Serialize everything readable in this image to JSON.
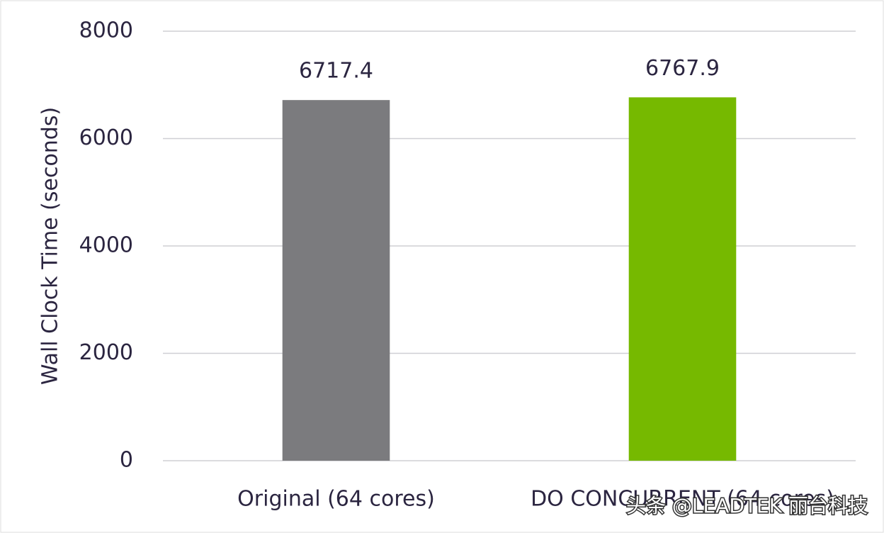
{
  "chart_data": {
    "type": "bar",
    "y_label": "Wall Clock Time (seconds)",
    "categories": [
      "Original (64 cores)",
      "DO CONCURRENT (64 cores)"
    ],
    "values": [
      6717.4,
      6767.9
    ],
    "colors": [
      "#7b7b7e",
      "#76b900"
    ],
    "ylim": [
      0,
      8000
    ],
    "yticks": [
      0,
      2000,
      4000,
      6000,
      8000
    ],
    "grid": true,
    "watermark": "头条 @LEADTEK 丽台科技"
  }
}
